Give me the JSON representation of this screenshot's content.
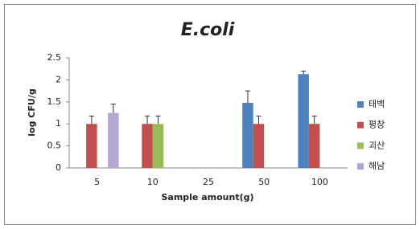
{
  "chart_data": {
    "type": "bar",
    "title": "E.coli",
    "x_label": "Sample amount(g)",
    "y_label": "log  CFU/g",
    "categories": [
      "5",
      "10",
      "25",
      "50",
      "100"
    ],
    "series": [
      {
        "name": "태백",
        "color": "#4f81bd",
        "values": [
          null,
          null,
          null,
          1.48,
          2.13
        ],
        "errors": [
          null,
          null,
          null,
          0.27,
          0.07
        ]
      },
      {
        "name": "평창",
        "color": "#c0504d",
        "values": [
          1.0,
          1.0,
          null,
          1.0,
          1.0
        ],
        "errors": [
          0.18,
          0.18,
          null,
          0.18,
          0.18
        ]
      },
      {
        "name": "괴산",
        "color": "#9bbb59",
        "values": [
          null,
          1.0,
          null,
          null,
          null
        ],
        "errors": [
          null,
          0.18,
          null,
          null,
          null
        ]
      },
      {
        "name": "해남",
        "color": "#b4a7d6",
        "values": [
          1.25,
          null,
          null,
          null,
          null
        ],
        "errors": [
          0.2,
          null,
          null,
          null,
          null
        ]
      }
    ],
    "ylim": [
      0,
      2.5
    ],
    "yticks": [
      0,
      0.5,
      1,
      1.5,
      2,
      2.5
    ],
    "grid": false,
    "legend": "right"
  }
}
